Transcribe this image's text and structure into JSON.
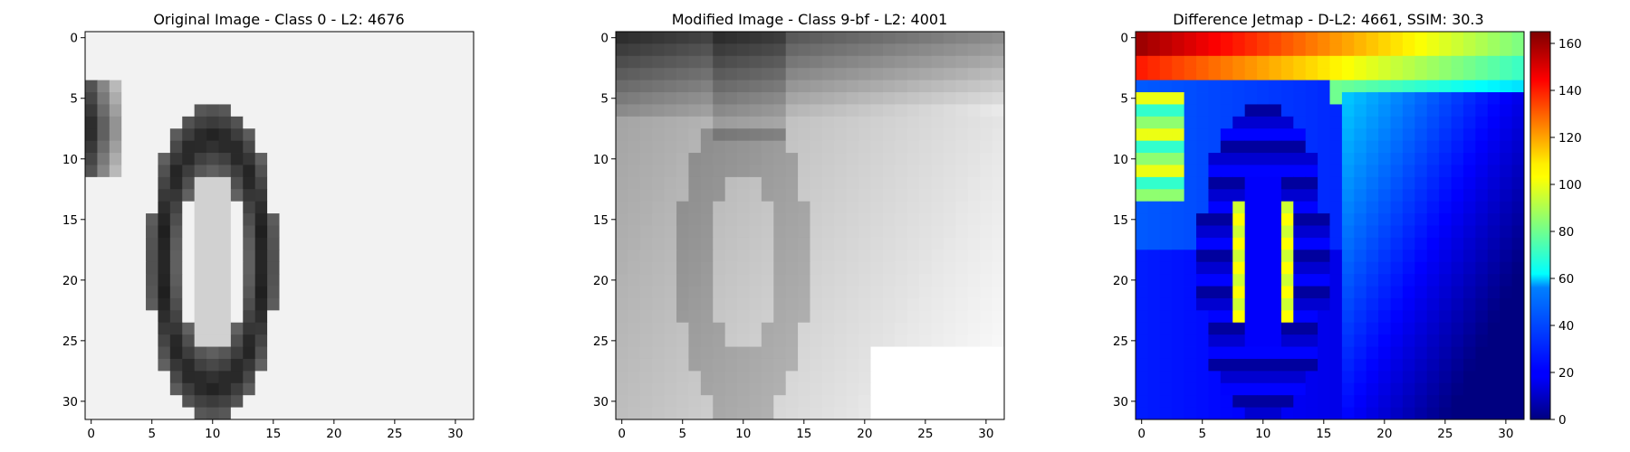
{
  "chart_data": [
    {
      "type": "heatmap",
      "title": "Original Image - Class 0 - L2: 4676",
      "title_color": "#000000",
      "colormap": "gray",
      "x_ticks": [
        "0",
        "5",
        "10",
        "15",
        "20",
        "25",
        "30"
      ],
      "y_ticks": [
        "0",
        "5",
        "10",
        "15",
        "20",
        "25",
        "30"
      ],
      "xlim": [
        -0.5,
        31.5
      ],
      "ylim": [
        31.5,
        -0.5
      ],
      "grid_size": [
        32,
        32
      ]
    },
    {
      "type": "heatmap",
      "title": "Modified Image - Class 9-bf - L2: 4001",
      "title_color": "#ff0000",
      "colormap": "gray",
      "x_ticks": [
        "0",
        "5",
        "10",
        "15",
        "20",
        "25",
        "30"
      ],
      "y_ticks": [
        "0",
        "5",
        "10",
        "15",
        "20",
        "25",
        "30"
      ],
      "xlim": [
        -0.5,
        31.5
      ],
      "ylim": [
        31.5,
        -0.5
      ],
      "grid_size": [
        32,
        32
      ]
    },
    {
      "type": "heatmap",
      "title": "Difference Jetmap - D-L2: 4661, SSIM: 30.3",
      "title_color": "#000000",
      "colormap": "jet",
      "x_ticks": [
        "0",
        "5",
        "10",
        "15",
        "20",
        "25",
        "30"
      ],
      "y_ticks": [
        "0",
        "5",
        "10",
        "15",
        "20",
        "25",
        "30"
      ],
      "xlim": [
        -0.5,
        31.5
      ],
      "ylim": [
        31.5,
        -0.5
      ],
      "grid_size": [
        32,
        32
      ],
      "colorbar": {
        "range": [
          0,
          165
        ],
        "ticks": [
          "0",
          "20",
          "40",
          "60",
          "80",
          "100",
          "120",
          "140",
          "160"
        ]
      }
    }
  ]
}
